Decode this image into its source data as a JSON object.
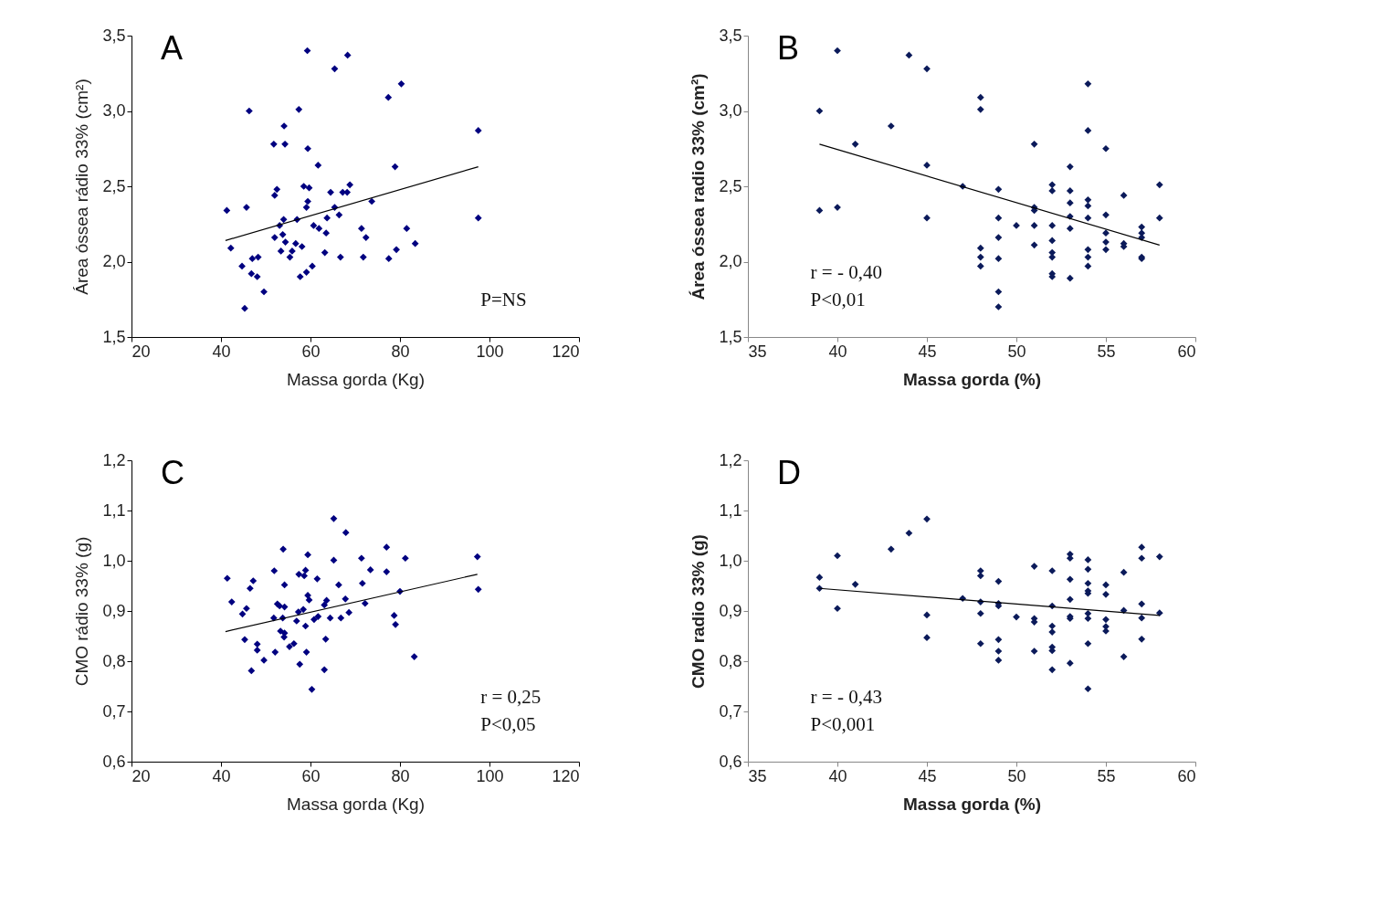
{
  "chart_data": [
    {
      "type": "scatter",
      "xlabel": "Massa gorda (Kg)",
      "ylabel": "Área óssea rádio 33% (cm²)",
      "annotations": [
        "A",
        "P=NS"
      ],
      "marker": "diamond",
      "xlim": [
        20,
        120
      ],
      "xticks": [
        20,
        40,
        60,
        80,
        100,
        120
      ],
      "ylim": [
        1.5,
        3.5
      ],
      "yticks": [
        {
          "value": 1.5,
          "label": "1,5"
        },
        {
          "value": 2.0,
          "label": "2,0"
        },
        {
          "value": 2.5,
          "label": "2,5"
        },
        {
          "value": 3.0,
          "label": "3,0"
        },
        {
          "value": 3.5,
          "label": "3,5"
        }
      ],
      "series": [
        {
          "color": "#000080",
          "x": [
            41.3,
            42.2,
            44.7,
            45.3,
            45.7,
            46.3,
            47.0,
            46.8,
            48.1,
            48.3,
            49.6,
            51.8,
            52.0,
            52.5,
            52.0,
            53.1,
            53.4,
            54.1,
            54.3,
            54.0,
            53.8,
            54.4,
            55.4,
            55.9,
            56.7,
            57.0,
            57.4,
            57.7,
            58.1,
            58.5,
            59.1,
            59.4,
            59.7,
            59.3,
            59.4,
            59.1,
            60.4,
            60.7,
            61.7,
            61.9,
            63.2,
            63.5,
            63.7,
            64.5,
            65.4,
            65.4,
            66.4,
            66.7,
            67.2,
            68.2,
            68.3,
            68.8,
            71.4,
            71.8,
            72.4,
            73.7,
            77.4,
            77.5,
            78.9,
            79.2,
            80.3,
            81.5,
            83.4,
            97.5,
            97.5
          ],
          "values": [
            2.34,
            2.09,
            1.97,
            1.69,
            2.36,
            3.0,
            2.02,
            1.92,
            1.9,
            2.03,
            1.8,
            2.78,
            2.44,
            2.48,
            2.16,
            2.24,
            2.07,
            2.9,
            2.78,
            2.28,
            2.18,
            2.13,
            2.03,
            2.07,
            2.12,
            2.28,
            3.01,
            1.9,
            2.1,
            2.5,
            2.36,
            2.4,
            2.49,
            3.4,
            2.75,
            1.93,
            1.97,
            2.24,
            2.64,
            2.22,
            2.06,
            2.19,
            2.29,
            2.46,
            3.28,
            2.36,
            2.31,
            2.03,
            2.46,
            2.46,
            3.37,
            2.51,
            2.22,
            2.03,
            2.16,
            2.4,
            3.09,
            2.02,
            2.63,
            2.08,
            3.18,
            2.22,
            2.12,
            2.87,
            2.29
          ]
        },
        {
          "type": "line",
          "marker": "none",
          "color": "#000000",
          "x": [
            41,
            97.5
          ],
          "values": [
            2.14,
            2.63
          ]
        }
      ]
    },
    {
      "type": "scatter",
      "xlabel": "Massa gorda (%)",
      "ylabel": "Área óssea radio 33% (cm²)",
      "annotations": [
        "B",
        "r = - 0,40",
        "P<0,01"
      ],
      "marker": "diamond",
      "xlim": [
        35,
        60
      ],
      "xticks": [
        35,
        40,
        45,
        50,
        55,
        60
      ],
      "ylim": [
        1.5,
        3.5
      ],
      "yticks": [
        {
          "value": 1.5,
          "label": "1,5"
        },
        {
          "value": 2.0,
          "label": "2,0"
        },
        {
          "value": 2.5,
          "label": "2,5"
        },
        {
          "value": 3.0,
          "label": "3,0"
        },
        {
          "value": 3.5,
          "label": "3,5"
        }
      ],
      "series": [
        {
          "color": "#0b1a5a",
          "x": [
            39,
            39,
            40,
            40,
            41,
            43,
            44,
            45,
            45,
            45,
            47,
            48,
            48,
            48,
            48,
            48,
            49,
            49,
            49,
            49,
            49,
            49,
            50,
            51,
            51,
            51,
            51,
            51,
            52,
            52,
            52,
            52,
            52,
            52,
            52,
            52,
            53,
            53,
            53,
            53,
            53,
            53,
            54,
            54,
            54,
            54,
            54,
            54,
            54,
            54,
            55,
            55,
            55,
            55,
            55,
            56,
            56,
            56,
            57,
            57,
            57,
            57,
            57,
            58,
            58
          ],
          "values": [
            3.0,
            2.34,
            3.4,
            2.36,
            2.78,
            2.9,
            3.37,
            3.28,
            2.64,
            2.29,
            2.5,
            3.09,
            3.01,
            2.09,
            2.03,
            1.97,
            2.48,
            2.29,
            2.16,
            2.02,
            1.8,
            1.7,
            2.24,
            2.78,
            2.36,
            2.34,
            2.24,
            2.11,
            2.51,
            2.47,
            2.24,
            2.14,
            2.06,
            2.03,
            1.92,
            1.9,
            2.63,
            2.47,
            2.39,
            2.3,
            2.22,
            1.89,
            3.18,
            2.87,
            2.41,
            2.37,
            2.29,
            2.08,
            2.03,
            1.97,
            2.75,
            2.31,
            2.19,
            2.13,
            2.08,
            2.44,
            2.12,
            2.1,
            2.23,
            2.19,
            2.16,
            2.03,
            2.02,
            2.51,
            2.29
          ]
        },
        {
          "type": "line",
          "marker": "none",
          "color": "#000000",
          "x": [
            39,
            58
          ],
          "values": [
            2.78,
            2.11
          ]
        }
      ]
    },
    {
      "type": "scatter",
      "xlabel": "Massa gorda (Kg)",
      "ylabel": "CMO rádio 33% (g)",
      "annotations": [
        "C",
        "r = 0,25",
        "P<0,05"
      ],
      "marker": "diamond",
      "xlim": [
        20,
        120
      ],
      "xticks": [
        20,
        40,
        60,
        80,
        100,
        120
      ],
      "ylim": [
        0.6,
        1.2
      ],
      "yticks": [
        {
          "value": 0.6,
          "label": "0,6"
        },
        {
          "value": 0.7,
          "label": "0,7"
        },
        {
          "value": 0.8,
          "label": "0,8"
        },
        {
          "value": 0.9,
          "label": "0,9"
        },
        {
          "value": 1.0,
          "label": "1,0"
        },
        {
          "value": 1.1,
          "label": "1,1"
        },
        {
          "value": 1.2,
          "label": "1,2"
        }
      ],
      "series": [
        {
          "color": "#000080",
          "x": [
            41.4,
            42.4,
            44.8,
            45.7,
            45.3,
            46.5,
            47.2,
            46.8,
            48.1,
            48.1,
            49.6,
            51.9,
            51.8,
            52.1,
            52.6,
            53.1,
            53.3,
            53.8,
            53.9,
            54.2,
            54.2,
            54.2,
            54.1,
            55.3,
            56.3,
            56.9,
            57.3,
            57.4,
            57.6,
            58.4,
            58.6,
            58.9,
            58.9,
            59.1,
            59.4,
            59.4,
            59.7,
            60.3,
            60.8,
            61.5,
            61.7,
            63.1,
            63.6,
            63.4,
            63.1,
            64.4,
            65.2,
            65.2,
            66.3,
            66.8,
            67.8,
            67.9,
            68.6,
            71.4,
            71.6,
            72.2,
            73.4,
            77.0,
            77.0,
            78.7,
            79.0,
            80.0,
            81.2,
            83.2,
            97.3,
            97.5
          ],
          "values": [
            0.965,
            0.918,
            0.894,
            0.905,
            0.843,
            0.945,
            0.96,
            0.781,
            0.834,
            0.822,
            0.802,
            0.98,
            0.886,
            0.818,
            0.914,
            0.91,
            0.86,
            0.886,
            1.023,
            0.952,
            0.908,
            0.856,
            0.848,
            0.829,
            0.835,
            0.88,
            0.898,
            0.973,
            0.794,
            0.903,
            0.97,
            0.981,
            0.87,
            0.818,
            1.012,
            0.931,
            0.922,
            0.744,
            0.883,
            0.964,
            0.889,
            0.912,
            0.921,
            0.844,
            0.783,
            0.886,
            1.001,
            1.084,
            0.952,
            0.886,
            0.924,
            1.056,
            0.897,
            1.005,
            0.955,
            0.915,
            0.982,
            1.027,
            0.978,
            0.891,
            0.873,
            0.939,
            1.005,
            0.809,
            1.008,
            0.943
          ]
        },
        {
          "type": "line",
          "marker": "none",
          "color": "#000000",
          "x": [
            41,
            97.3
          ],
          "values": [
            0.859,
            0.973
          ]
        }
      ]
    },
    {
      "type": "scatter",
      "xlabel": "Massa gorda (%)",
      "ylabel": "CMO radio 33% (g)",
      "annotations": [
        "D",
        "r = - 0,43",
        "P<0,001"
      ],
      "marker": "diamond",
      "xlim": [
        35,
        60
      ],
      "xticks": [
        35,
        40,
        45,
        50,
        55,
        60
      ],
      "ylim": [
        0.6,
        1.2
      ],
      "yticks": [
        {
          "value": 0.6,
          "label": "0,6"
        },
        {
          "value": 0.7,
          "label": "0,7"
        },
        {
          "value": 0.8,
          "label": "0,8"
        },
        {
          "value": 0.9,
          "label": "0,9"
        },
        {
          "value": 1.0,
          "label": "1,0"
        },
        {
          "value": 1.1,
          "label": "1,1"
        },
        {
          "value": 1.2,
          "label": "1,2"
        }
      ],
      "series": [
        {
          "color": "#0b1a5a",
          "x": [
            39,
            39,
            40,
            40,
            41,
            43,
            44,
            45,
            45,
            45,
            47,
            48,
            48,
            48,
            48,
            48,
            49,
            49,
            49,
            49,
            49,
            49,
            50,
            51,
            51,
            51,
            51,
            52,
            52,
            52,
            52,
            52,
            52,
            52,
            53,
            53,
            53,
            53,
            53,
            53,
            53,
            54,
            54,
            54,
            54,
            54,
            54,
            54,
            54,
            54,
            55,
            55,
            55,
            55,
            55,
            56,
            56,
            56,
            57,
            57,
            57,
            57,
            57,
            58,
            58
          ],
          "values": [
            0.967,
            0.945,
            1.01,
            0.905,
            0.953,
            1.023,
            1.055,
            1.083,
            0.892,
            0.847,
            0.925,
            0.98,
            0.97,
            0.918,
            0.895,
            0.835,
            0.959,
            0.915,
            0.91,
            0.843,
            0.82,
            0.802,
            0.888,
            0.989,
            0.885,
            0.878,
            0.82,
            0.98,
            0.91,
            0.87,
            0.858,
            0.828,
            0.821,
            0.783,
            1.013,
            1.005,
            0.963,
            0.923,
            0.889,
            0.885,
            0.796,
            1.002,
            0.983,
            0.955,
            0.94,
            0.935,
            0.895,
            0.885,
            0.835,
            0.745,
            0.952,
            0.933,
            0.883,
            0.869,
            0.86,
            0.977,
            0.901,
            0.809,
            1.027,
            1.005,
            0.914,
            0.886,
            0.844,
            1.008,
            0.896
          ]
        },
        {
          "type": "line",
          "marker": "none",
          "color": "#000000",
          "x": [
            39,
            58
          ],
          "values": [
            0.945,
            0.891
          ]
        }
      ]
    }
  ]
}
